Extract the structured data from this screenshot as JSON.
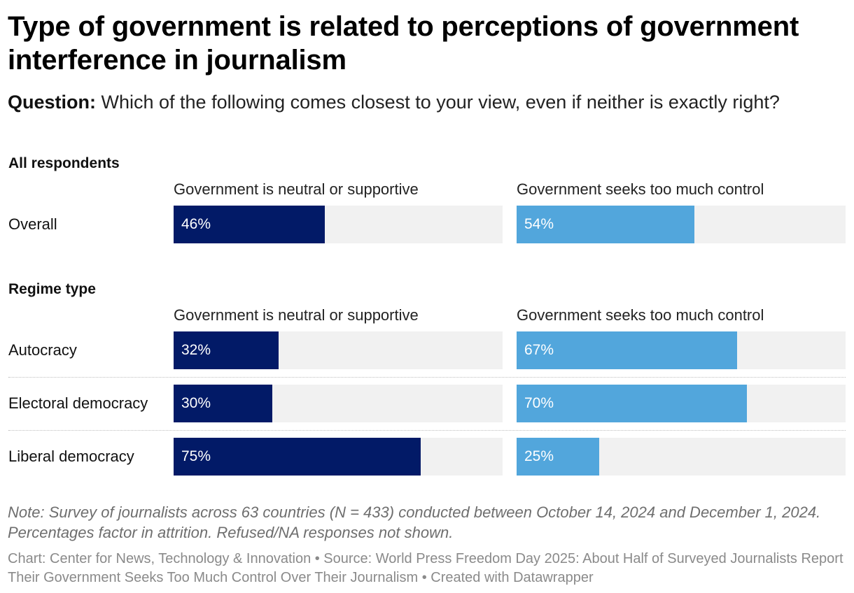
{
  "title": "Type of government is related to perceptions of government interference in journalism",
  "question_label": "Question:",
  "question_text": " Which of the following comes closest to your view, even if neither is exactly right?",
  "colors": {
    "neutral_series": "#021a67",
    "control_series": "#52a6dc",
    "bar_background": "#f1f1f1"
  },
  "chart_data": {
    "type": "bar",
    "orientation": "horizontal",
    "x_range": [
      0,
      100
    ],
    "unit": "%",
    "series_names": [
      "Government is neutral or supportive",
      "Government seeks too much control"
    ],
    "groups": [
      {
        "name": "All respondents",
        "col_headers": [
          "Government is neutral or supportive",
          "Government seeks too much control"
        ],
        "rows": [
          {
            "label": "Overall",
            "neutral": 46,
            "neutral_label": "46%",
            "control": 54,
            "control_label": "54%"
          }
        ]
      },
      {
        "name": "Regime type",
        "col_headers": [
          "Government is neutral or supportive",
          "Government seeks too much control"
        ],
        "rows": [
          {
            "label": "Autocracy",
            "neutral": 32,
            "neutral_label": "32%",
            "control": 67,
            "control_label": "67%"
          },
          {
            "label": "Electoral democracy",
            "neutral": 30,
            "neutral_label": "30%",
            "control": 70,
            "control_label": "70%"
          },
          {
            "label": "Liberal democracy",
            "neutral": 75,
            "neutral_label": "75%",
            "control": 25,
            "control_label": "25%"
          }
        ]
      }
    ]
  },
  "note": "Note: Survey of journalists across 63 countries (N = 433) conducted between October 14, 2024 and December 1, 2024. Percentages factor in attrition. Refused/NA responses not shown.",
  "footer": "Chart: Center for News, Technology & Innovation • Source: World Press Freedom Day 2025: About Half of Surveyed Journalists Report Their Government Seeks Too Much Control Over Their Journalism • Created with Datawrapper"
}
